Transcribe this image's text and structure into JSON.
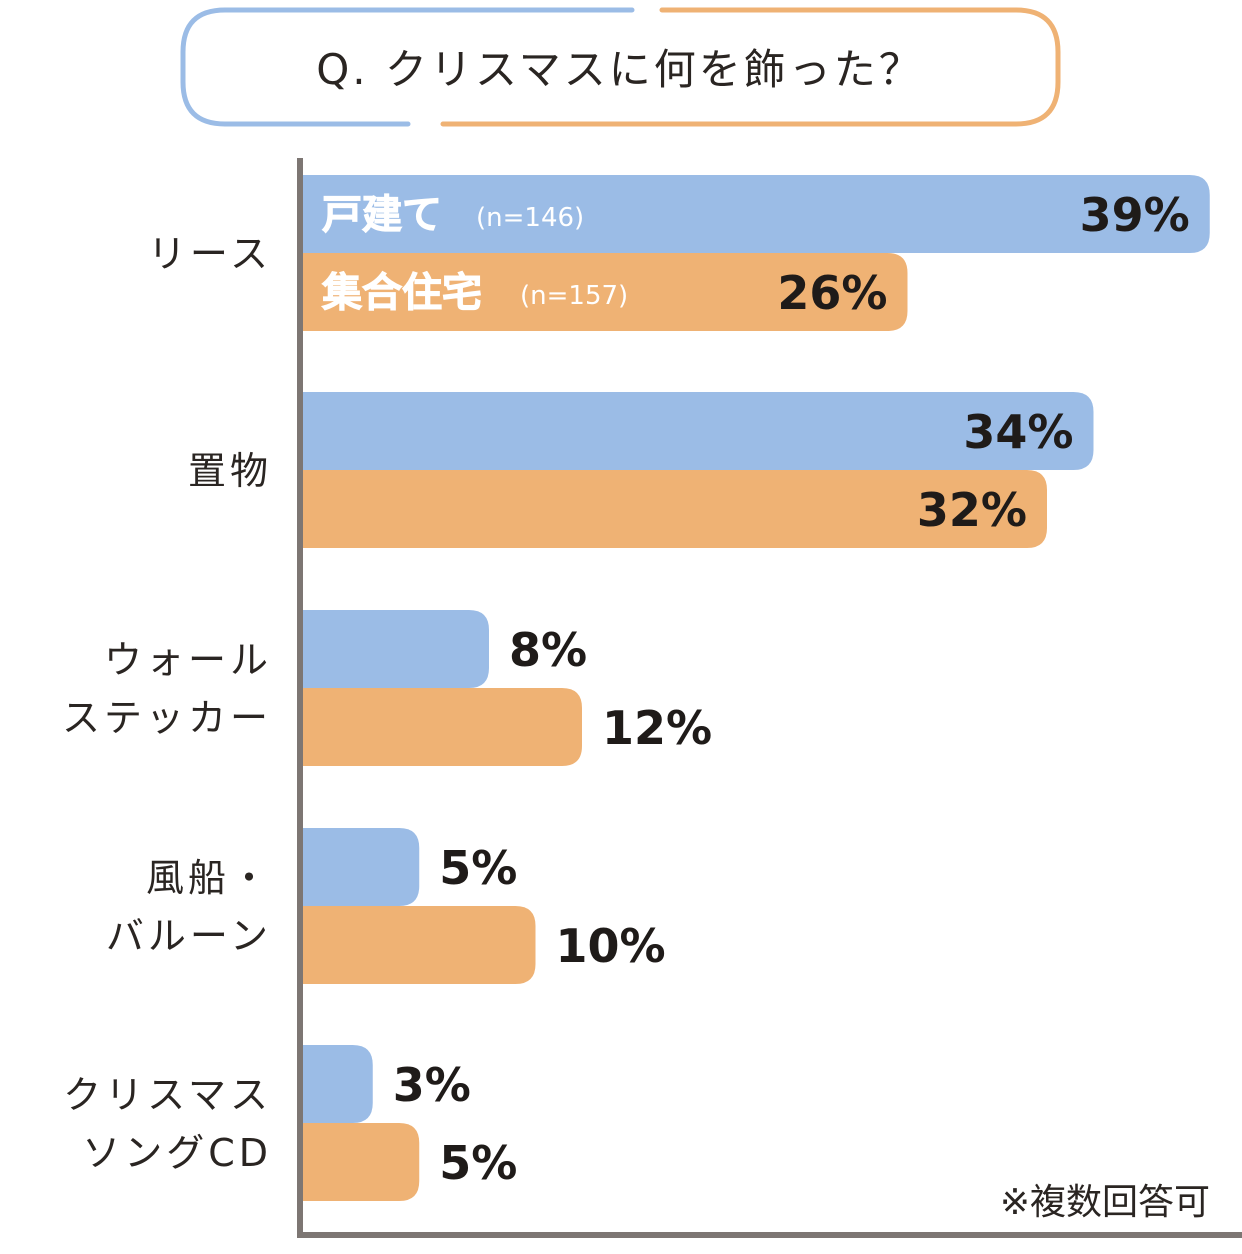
{
  "chart_data": {
    "type": "bar",
    "orientation": "horizontal",
    "title": "Q. クリスマスに何を飾った？",
    "categories": [
      [
        "リース"
      ],
      [
        "置物"
      ],
      [
        "ウォール",
        "ステッカー"
      ],
      [
        "風船・",
        "バルーン"
      ],
      [
        "クリスマス",
        "ソングCD"
      ]
    ],
    "series": [
      {
        "name": "戸建て",
        "n": "(n=146)",
        "color": "#9bbce6",
        "values": [
          39,
          34,
          8,
          5,
          3
        ]
      },
      {
        "name": "集合住宅",
        "n": "(n=157)",
        "color": "#efb274",
        "values": [
          26,
          32,
          12,
          10,
          5
        ]
      }
    ],
    "value_suffix": "%",
    "xlim": [
      0,
      40
    ],
    "grid": false,
    "legend": "inside first bars, left",
    "note": "※複数回答可"
  }
}
